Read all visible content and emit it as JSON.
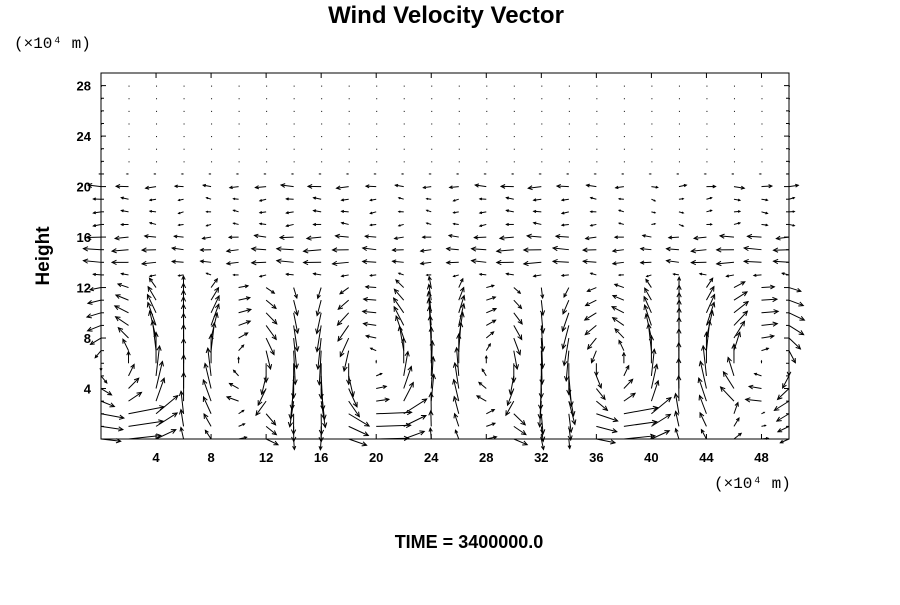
{
  "chart_data": {
    "type": "vector_field",
    "title": "Wind Velocity Vector",
    "ylabel": "Height",
    "x_unit_label": "(×10⁴ m)",
    "y_unit_label": "(×10⁴ m)",
    "xlim": [
      0,
      50
    ],
    "ylim": [
      0,
      29
    ],
    "xticks": [
      4,
      8,
      12,
      16,
      20,
      24,
      28,
      32,
      36,
      40,
      44,
      48
    ],
    "yticks": [
      4,
      8,
      12,
      16,
      20,
      24,
      28
    ],
    "grid": false,
    "arrow_color": "#000000",
    "footer": "TIME = 3400000.0",
    "x_grid": [
      0,
      2,
      4,
      6,
      8,
      10,
      12,
      14,
      16,
      18,
      20,
      22,
      24,
      26,
      28,
      30,
      32,
      34,
      36,
      38,
      40,
      42,
      44,
      46,
      48,
      50
    ],
    "y_grid": [
      0,
      1,
      2,
      3,
      4,
      5,
      6,
      7,
      8,
      9,
      10,
      11,
      12,
      13,
      14,
      15,
      16,
      17,
      18,
      19,
      20,
      21,
      22,
      23,
      24,
      25,
      26,
      27,
      28
    ],
    "vectors_note": "u,v arrays indexed [row_y][col_x]",
    "u": [],
    "v": []
  }
}
